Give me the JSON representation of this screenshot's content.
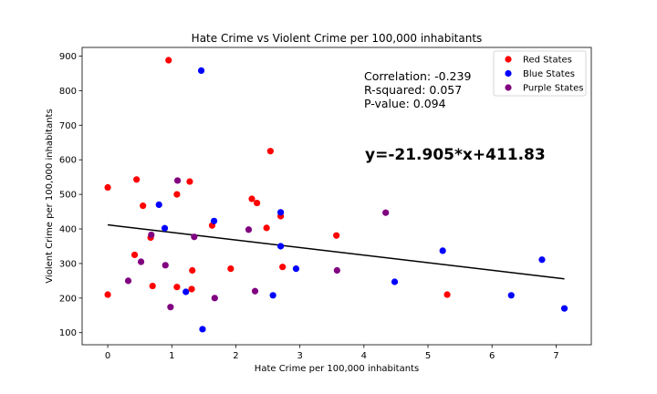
{
  "chart_data": {
    "type": "scatter",
    "title": "Hate Crime vs Violent Crime per 100,000 inhabitants",
    "xlabel": "Hate Crime per 100,000 inhabitants",
    "ylabel": "Violent Crime per 100,000 inhabitants",
    "xlim": [
      -0.4,
      7.55
    ],
    "ylim": [
      65,
      925
    ],
    "xticks": [
      "0",
      "1",
      "2",
      "3",
      "4",
      "5",
      "6",
      "7"
    ],
    "yticks": [
      "100",
      "200",
      "300",
      "400",
      "500",
      "600",
      "700",
      "800",
      "900"
    ],
    "legend_position": "top-right",
    "series": [
      {
        "name": "Red States",
        "color": "#ff0000",
        "points": [
          [
            0.0,
            520
          ],
          [
            0.0,
            210
          ],
          [
            0.45,
            543
          ],
          [
            0.42,
            325
          ],
          [
            0.55,
            467
          ],
          [
            0.67,
            375
          ],
          [
            0.7,
            235
          ],
          [
            0.95,
            888
          ],
          [
            1.08,
            500
          ],
          [
            1.08,
            232
          ],
          [
            1.28,
            537
          ],
          [
            1.32,
            280
          ],
          [
            1.31,
            226
          ],
          [
            1.63,
            410
          ],
          [
            1.92,
            285
          ],
          [
            2.25,
            487
          ],
          [
            2.33,
            475
          ],
          [
            2.48,
            403
          ],
          [
            2.54,
            625
          ],
          [
            2.7,
            437
          ],
          [
            2.73,
            290
          ],
          [
            3.57,
            381
          ],
          [
            5.3,
            210
          ]
        ]
      },
      {
        "name": "Blue States",
        "color": "#0000ff",
        "points": [
          [
            0.8,
            470
          ],
          [
            0.89,
            402
          ],
          [
            1.46,
            858
          ],
          [
            1.22,
            218
          ],
          [
            1.48,
            110
          ],
          [
            1.66,
            423
          ],
          [
            2.58,
            208
          ],
          [
            2.7,
            448
          ],
          [
            2.7,
            350
          ],
          [
            2.94,
            285
          ],
          [
            4.48,
            247
          ],
          [
            5.23,
            337
          ],
          [
            6.3,
            208
          ],
          [
            6.78,
            311
          ],
          [
            7.13,
            170
          ]
        ]
      },
      {
        "name": "Purple States",
        "color": "#800080",
        "points": [
          [
            0.32,
            250
          ],
          [
            0.52,
            305
          ],
          [
            0.68,
            383
          ],
          [
            0.9,
            295
          ],
          [
            0.98,
            174
          ],
          [
            1.09,
            540
          ],
          [
            1.35,
            377
          ],
          [
            1.67,
            200
          ],
          [
            2.2,
            398
          ],
          [
            2.3,
            220
          ],
          [
            3.58,
            280
          ],
          [
            4.34,
            447
          ]
        ]
      }
    ],
    "regression": {
      "slope": -21.905,
      "intercept": 411.83,
      "x_range": [
        0.0,
        7.13
      ],
      "color": "#000000"
    },
    "annotations": {
      "correlation": "Correlation: -0.239",
      "r_squared": "R-squared: 0.057",
      "p_value": "P-value: 0.094",
      "equation": "y=-21.905*x+411.83"
    }
  }
}
